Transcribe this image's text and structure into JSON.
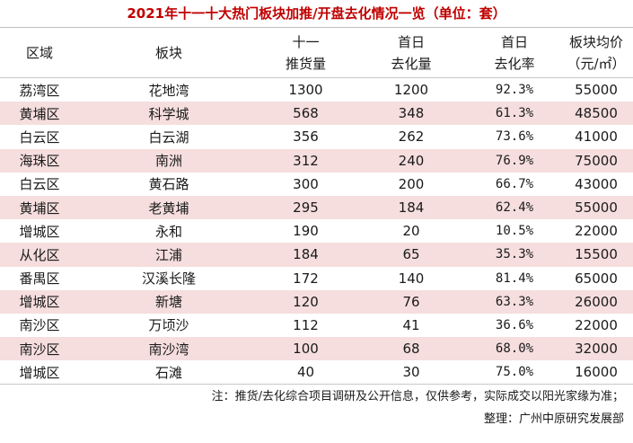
{
  "title": "2021年十一十大热门板块加推/开盘去化情况一览（单位：套）",
  "header": {
    "region": "区域",
    "block": "板块",
    "supply_line1": "十一",
    "supply_line2": "推货量",
    "sold_line1": "首日",
    "sold_line2": "去化量",
    "rate_line1": "首日",
    "rate_line2": "去化率",
    "price_line1": "板块均价",
    "price_line2": "（元/㎡）"
  },
  "rows": [
    {
      "region": "荔湾区",
      "block": "花地湾",
      "supply": "1300",
      "sold": "1200",
      "rate": "92.3%",
      "price": "55000"
    },
    {
      "region": "黄埔区",
      "block": "科学城",
      "supply": "568",
      "sold": "348",
      "rate": "61.3%",
      "price": "48500"
    },
    {
      "region": "白云区",
      "block": "白云湖",
      "supply": "356",
      "sold": "262",
      "rate": "73.6%",
      "price": "41000"
    },
    {
      "region": "海珠区",
      "block": "南洲",
      "supply": "312",
      "sold": "240",
      "rate": "76.9%",
      "price": "75000"
    },
    {
      "region": "白云区",
      "block": "黄石路",
      "supply": "300",
      "sold": "200",
      "rate": "66.7%",
      "price": "43000"
    },
    {
      "region": "黄埔区",
      "block": "老黄埔",
      "supply": "295",
      "sold": "184",
      "rate": "62.4%",
      "price": "55000"
    },
    {
      "region": "增城区",
      "block": "永和",
      "supply": "190",
      "sold": "20",
      "rate": "10.5%",
      "price": "22000"
    },
    {
      "region": "从化区",
      "block": "江浦",
      "supply": "184",
      "sold": "65",
      "rate": "35.3%",
      "price": "15500"
    },
    {
      "region": "番禺区",
      "block": "汉溪长隆",
      "supply": "172",
      "sold": "140",
      "rate": "81.4%",
      "price": "65000"
    },
    {
      "region": "增城区",
      "block": "新塘",
      "supply": "120",
      "sold": "76",
      "rate": "63.3%",
      "price": "26000"
    },
    {
      "region": "南沙区",
      "block": "万顷沙",
      "supply": "112",
      "sold": "41",
      "rate": "36.6%",
      "price": "22000"
    },
    {
      "region": "南沙区",
      "block": "南沙湾",
      "supply": "100",
      "sold": "68",
      "rate": "68.0%",
      "price": "32000"
    },
    {
      "region": "增城区",
      "block": "石滩",
      "supply": "40",
      "sold": "30",
      "rate": "75.0%",
      "price": "16000"
    }
  ],
  "footer": {
    "note": "注：推货/去化综合项目调研及公开信息，仅供参考，实际成交以阳光家缘为准；",
    "org": "整理：广州中原研究发展部"
  },
  "colors": {
    "title": "#c00000",
    "shade": "#f6dede"
  }
}
